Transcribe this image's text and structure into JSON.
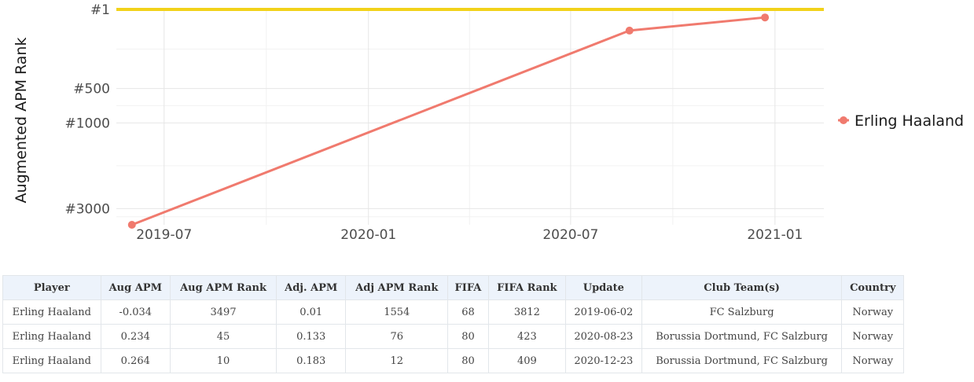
{
  "chart_data": {
    "type": "line",
    "title": "",
    "xlabel": "",
    "ylabel": "Augmented APM Rank",
    "x_ticks": [
      "2019-07",
      "2020-01",
      "2020-07",
      "2021-01"
    ],
    "y_ticks": [
      {
        "value": 1,
        "label": "#1"
      },
      {
        "value": 500,
        "label": "#500"
      },
      {
        "value": 1000,
        "label": "#1000"
      },
      {
        "value": 3000,
        "label": "#3000"
      }
    ],
    "y_reversed": true,
    "ylim": [
      3497,
      1
    ],
    "xlim": [
      "2019-05-19",
      "2021-02-14"
    ],
    "grid": true,
    "legend_position": "right",
    "reference_line": {
      "value": 1,
      "color": "#f2d21a"
    },
    "series": [
      {
        "name": "Erling Haaland",
        "color": "#f07a6e",
        "points": [
          {
            "x": "2019-06-02",
            "y": 3497
          },
          {
            "x": "2020-08-23",
            "y": 45
          },
          {
            "x": "2020-12-23",
            "y": 10
          }
        ]
      }
    ]
  },
  "table": {
    "headers": [
      "Player",
      "Aug APM",
      "Aug APM Rank",
      "Adj. APM",
      "Adj APM Rank",
      "FIFA",
      "FIFA Rank",
      "Update",
      "Club Team(s)",
      "Country"
    ],
    "rows": [
      [
        "Erling Haaland",
        "-0.034",
        "3497",
        "0.01",
        "1554",
        "68",
        "3812",
        "2019-06-02",
        "FC Salzburg",
        "Norway"
      ],
      [
        "Erling Haaland",
        "0.234",
        "45",
        "0.133",
        "76",
        "80",
        "423",
        "2020-08-23",
        "Borussia Dortmund, FC Salzburg",
        "Norway"
      ],
      [
        "Erling Haaland",
        "0.264",
        "10",
        "0.183",
        "12",
        "80",
        "409",
        "2020-12-23",
        "Borussia Dortmund, FC Salzburg",
        "Norway"
      ]
    ]
  }
}
